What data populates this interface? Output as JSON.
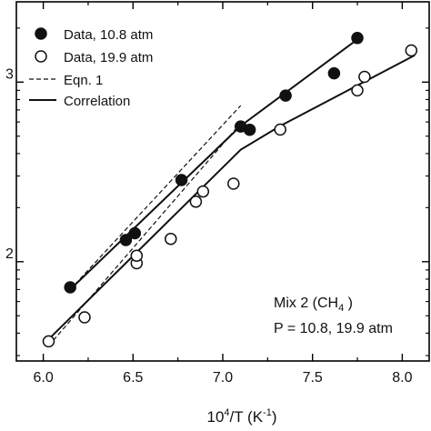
{
  "chart_data": {
    "type": "scatter",
    "x_range": [
      5.85,
      8.15
    ],
    "y_scale": "log",
    "y_range": [
      28,
      2800
    ],
    "x_ticks": [
      "6.0",
      "6.5",
      "7.0",
      "7.5",
      "8.0"
    ],
    "y_tick_fragments": [
      "3",
      "2"
    ],
    "xlabel": {
      "base": "10",
      "exp1": "4",
      "mid": "/T (K",
      "exp2": "-1",
      "end": ")"
    },
    "legend_placement": "top-left",
    "series": [
      {
        "name": "Data, 10.8 atm",
        "marker": "filled-circle",
        "points": [
          [
            6.15,
            72
          ],
          [
            6.46,
            132
          ],
          [
            6.51,
            144
          ],
          [
            6.77,
            285
          ],
          [
            7.1,
            566
          ],
          [
            7.15,
            543
          ],
          [
            7.35,
            842
          ],
          [
            7.62,
            1120
          ],
          [
            7.75,
            1760
          ]
        ]
      },
      {
        "name": "Data, 19.9 atm",
        "marker": "open-circle",
        "points": [
          [
            6.03,
            36
          ],
          [
            6.23,
            49
          ],
          [
            6.52,
            98
          ],
          [
            6.52,
            108
          ],
          [
            6.71,
            134
          ],
          [
            6.85,
            216
          ],
          [
            6.89,
            246
          ],
          [
            7.06,
            272
          ],
          [
            7.32,
            544
          ],
          [
            7.75,
            900
          ],
          [
            7.79,
            1070
          ],
          [
            8.05,
            1500
          ]
        ]
      },
      {
        "name": "Eqn. 1",
        "style": "dashed",
        "lines": [
          [
            [
              6.15,
              70
            ],
            [
              7.1,
              740
            ]
          ],
          [
            [
              6.03,
              34
            ],
            [
              7.1,
              590
            ]
          ]
        ]
      },
      {
        "name": "Correlation",
        "style": "solid",
        "lines": [
          [
            [
              6.15,
              70
            ],
            [
              7.1,
              570
            ],
            [
              7.78,
              1820
            ]
          ],
          [
            [
              6.03,
              37
            ],
            [
              7.1,
              420
            ],
            [
              7.32,
              570
            ],
            [
              8.07,
              1410
            ]
          ]
        ]
      }
    ],
    "annotation": {
      "line1_prefix": "Mix 2 (CH",
      "line1_sub": "4",
      "line1_suffix": " )",
      "line2": "P = 10.8, 19.9 atm"
    }
  }
}
